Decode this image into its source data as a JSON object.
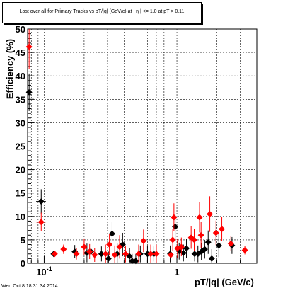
{
  "chart_data": {
    "type": "scatter",
    "title": "Lost over all for Primary Tracks vs pT/|q| (GeV/c) at |  η | <= 1.0 at pT > 0.11",
    "xlabel": "pT/|q| (GeV/c)",
    "ylabel": "Efficiency (%)",
    "x_scale": "log",
    "xlim": [
      0.075,
      4.0
    ],
    "ylim": [
      0,
      50
    ],
    "grid": true,
    "x_tick_labels": [
      {
        "value": 0.1,
        "base": "10",
        "exp": "-1"
      },
      {
        "value": 1,
        "text": "1"
      }
    ],
    "y_ticks": [
      0,
      5,
      10,
      15,
      20,
      25,
      30,
      35,
      40,
      45,
      50
    ],
    "series": [
      {
        "color": "#000000",
        "marker": "diamond",
        "points": [
          {
            "x": 0.077,
            "y": 36.5,
            "yerr": 4.0,
            "xerr": 0.002
          },
          {
            "x": 0.095,
            "y": 13.2,
            "yerr": 2.6,
            "xerr": 0.008
          },
          {
            "x": 0.118,
            "y": 2.0,
            "yerr": 0.6,
            "xerr": 0.006
          },
          {
            "x": 0.17,
            "y": 2.5,
            "yerr": 1.4
          },
          {
            "x": 0.21,
            "y": 2.2,
            "yerr": 2.0
          },
          {
            "x": 0.225,
            "y": 2.5,
            "yerr": 1.8
          },
          {
            "x": 0.27,
            "y": 2.0,
            "yerr": 1.6
          },
          {
            "x": 0.305,
            "y": 1.0,
            "yerr": 1.5
          },
          {
            "x": 0.325,
            "y": 6.3,
            "yerr": 2.6
          },
          {
            "x": 0.355,
            "y": 2.0,
            "yerr": 2.2
          },
          {
            "x": 0.39,
            "y": 4.0,
            "yerr": 2.5
          },
          {
            "x": 0.44,
            "y": 1.5,
            "yerr": 1.8
          },
          {
            "x": 0.46,
            "y": 0.5,
            "yerr": 1.5
          },
          {
            "x": 0.49,
            "y": 0.5,
            "yerr": 1.5
          },
          {
            "x": 0.53,
            "y": 2.0,
            "yerr": 1.8
          },
          {
            "x": 0.6,
            "y": 2.0,
            "yerr": 1.8
          },
          {
            "x": 0.67,
            "y": 2.0,
            "yerr": 1.6
          },
          {
            "x": 0.89,
            "y": 2.0,
            "yerr": 1.8
          },
          {
            "x": 0.97,
            "y": 7.8,
            "yerr": 2.5
          },
          {
            "x": 1.04,
            "y": 2.6,
            "yerr": 1.8
          },
          {
            "x": 1.12,
            "y": 2.2,
            "yerr": 1.8
          },
          {
            "x": 1.18,
            "y": 3.2,
            "yerr": 2.0
          },
          {
            "x": 1.36,
            "y": 2.0,
            "yerr": 1.6
          },
          {
            "x": 1.44,
            "y": 2.0,
            "yerr": 1.8
          },
          {
            "x": 1.53,
            "y": 2.5,
            "yerr": 1.8
          },
          {
            "x": 1.62,
            "y": 3.0,
            "yerr": 2.0
          },
          {
            "x": 1.72,
            "y": 4.5,
            "yerr": 2.5
          },
          {
            "x": 1.83,
            "y": 1.0,
            "yerr": 2.0
          },
          {
            "x": 2.07,
            "y": 3.8,
            "yerr": 2.5
          },
          {
            "x": 2.6,
            "y": 3.8,
            "yerr": 1.8
          }
        ]
      },
      {
        "color": "#ff0000",
        "marker": "diamond",
        "points": [
          {
            "x": 0.077,
            "y": 46.2,
            "yerr": 4.8,
            "xerr": 0.002
          },
          {
            "x": 0.095,
            "y": 8.8,
            "yerr": 2.0,
            "xerr": 0.008
          },
          {
            "x": 0.12,
            "y": 2.0,
            "yerr": 0.6
          },
          {
            "x": 0.14,
            "y": 3.0,
            "yerr": 1.0
          },
          {
            "x": 0.175,
            "y": 2.0,
            "yerr": 1.2
          },
          {
            "x": 0.2,
            "y": 3.5,
            "yerr": 1.8
          },
          {
            "x": 0.22,
            "y": 2.5,
            "yerr": 1.6
          },
          {
            "x": 0.24,
            "y": 1.8,
            "yerr": 1.5
          },
          {
            "x": 0.29,
            "y": 2.0,
            "yerr": 2.0
          },
          {
            "x": 0.31,
            "y": 4.0,
            "yerr": 2.2
          },
          {
            "x": 0.34,
            "y": 1.8,
            "yerr": 2.0
          },
          {
            "x": 0.37,
            "y": 3.5,
            "yerr": 2.5
          },
          {
            "x": 0.41,
            "y": 2.0,
            "yerr": 1.8
          },
          {
            "x": 0.515,
            "y": 2.0,
            "yerr": 2.0
          },
          {
            "x": 0.56,
            "y": 4.8,
            "yerr": 2.4
          },
          {
            "x": 0.635,
            "y": 2.0,
            "yerr": 2.0
          },
          {
            "x": 0.7,
            "y": 2.0,
            "yerr": 2.0
          },
          {
            "x": 0.9,
            "y": 1.8,
            "yerr": 1.8
          },
          {
            "x": 0.93,
            "y": 5.0,
            "yerr": 2.4
          },
          {
            "x": 0.95,
            "y": 9.8,
            "yerr": 3.0
          },
          {
            "x": 1.01,
            "y": 3.2,
            "yerr": 2.0
          },
          {
            "x": 1.08,
            "y": 3.5,
            "yerr": 2.0
          },
          {
            "x": 1.28,
            "y": 5.5,
            "yerr": 2.4
          },
          {
            "x": 1.35,
            "y": 5.0,
            "yerr": 2.4
          },
          {
            "x": 1.48,
            "y": 9.8,
            "yerr": 3.2
          },
          {
            "x": 1.52,
            "y": 6.0,
            "yerr": 2.8
          },
          {
            "x": 1.77,
            "y": 10.5,
            "yerr": 3.8
          },
          {
            "x": 1.97,
            "y": 6.5,
            "yerr": 2.6
          },
          {
            "x": 2.18,
            "y": 7.3,
            "yerr": 2.6
          },
          {
            "x": 2.55,
            "y": 4.2,
            "yerr": 1.6
          },
          {
            "x": 3.25,
            "y": 2.8,
            "yerr": 0.9
          }
        ]
      }
    ]
  },
  "footer": {
    "timestamp": "Wed Oct  8 18:31:34 2014"
  }
}
